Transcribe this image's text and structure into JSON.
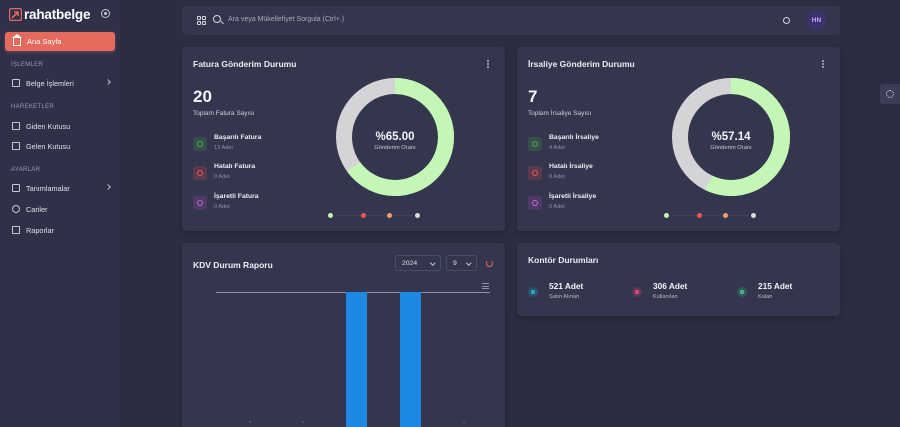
{
  "brand": {
    "name": "rahatbelge",
    "accent": "#e46a5e"
  },
  "sidebar": {
    "home": "Ana Sayfa",
    "sections": [
      {
        "title": "İŞLEMLER",
        "items": [
          {
            "label": "Belge İşlemleri",
            "icon": "file-icon",
            "has_submenu": true
          }
        ]
      },
      {
        "title": "HAREKETLER",
        "items": [
          {
            "label": "Giden Kutusu",
            "icon": "outbox-icon"
          },
          {
            "label": "Gelen Kutusu",
            "icon": "inbox-icon"
          }
        ]
      },
      {
        "title": "AYARLAR",
        "items": [
          {
            "label": "Tanımlamalar",
            "icon": "grid-icon",
            "has_submenu": true
          },
          {
            "label": "Cariler",
            "icon": "users-icon"
          },
          {
            "label": "Raporlar",
            "icon": "report-icon"
          }
        ]
      }
    ]
  },
  "topbar": {
    "search_placeholder": "Ara veya Mükellefiyet Sorgula (Ctrl+.)",
    "avatar_initials": "HN"
  },
  "invoice_card": {
    "title": "Fatura Gönderim Durumu",
    "total": "20",
    "total_label": "Toplam Fatura Sayısı",
    "stats": [
      {
        "label": "Başarılı Fatura",
        "sub": "13 Adet",
        "color": "#4caf50"
      },
      {
        "label": "Hatalı Fatura",
        "sub": "0 Adet",
        "color": "#ef5350"
      },
      {
        "label": "İşaretli Fatura",
        "sub": "0 Adet",
        "color": "#ab47bc"
      }
    ],
    "rate": "%65.00",
    "rate_label": "Gönderim Oranı",
    "rate_value": 0.65
  },
  "waybill_card": {
    "title": "İrsaliye Gönderim Durumu",
    "total": "7",
    "total_label": "Toplam İrsaliye Sayısı",
    "stats": [
      {
        "label": "Başarılı İrsaliye",
        "sub": "4 Adet",
        "color": "#4caf50"
      },
      {
        "label": "Hatalı İrsaliye",
        "sub": "0 Adet",
        "color": "#ef5350"
      },
      {
        "label": "İşaretli İrsaliye",
        "sub": "0 Adet",
        "color": "#ab47bc"
      }
    ],
    "rate": "%57.14",
    "rate_label": "Gönderim Oranı",
    "rate_value": 0.5714
  },
  "donut_colors": {
    "success": "#c4f7b5",
    "rest": "#d6d3d6"
  },
  "legend_dot_colors": [
    "#c4f7b5",
    "#ef5a4e",
    "#f59b65",
    "#dcdcdc"
  ],
  "kdv_card": {
    "title": "KDV Durum Raporu",
    "year": "2024",
    "month": "9"
  },
  "chart_data": {
    "type": "bar",
    "series": [
      {
        "values": [
          0,
          0,
          1,
          1,
          0
        ]
      }
    ],
    "bar_color": "#1e88e5"
  },
  "kontor_card": {
    "title": "Kontör Durumları",
    "items": [
      {
        "value": "521 Adet",
        "label": "Satın Alınan",
        "color": "#26a6c9"
      },
      {
        "value": "306 Adet",
        "label": "Kullanılan",
        "color": "#e0457b"
      },
      {
        "value": "215 Adet",
        "label": "Kalan",
        "color": "#3fb67a"
      }
    ]
  }
}
